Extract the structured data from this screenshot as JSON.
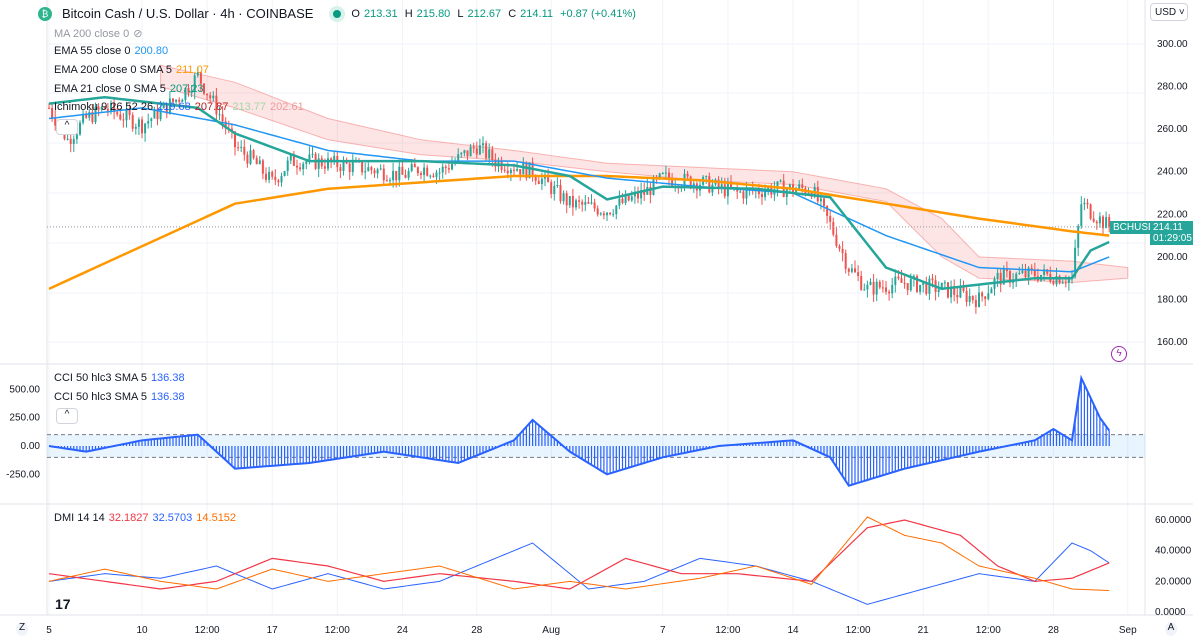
{
  "header": {
    "symbol": "Bitcoin Cash / U.S. Dollar · 4h · COINBASE",
    "open": "213.31",
    "high": "215.80",
    "low": "212.67",
    "close": "214.11",
    "change": "+0.87 (+0.41%)",
    "o": "O",
    "h": "H",
    "l": "L",
    "c": "C"
  },
  "legend": {
    "ma": "MA 200 close 0",
    "ema55": "EMA 55 close 0",
    "ema55_val": "200.80",
    "ema200": "EMA 200 close 0 SMA 5",
    "ema200_val": "211.07",
    "ema21": "EMA 21 close 0 SMA 5",
    "ema21_val": "207.23",
    "ichi": "Ichimoku 9 26 52 26",
    "ichi_vals": [
      "219.68",
      "207.87",
      "213.77",
      "202.61"
    ],
    "cci1": "CCI 50 hlc3 SMA 5",
    "cci1_val": "136.38",
    "cci2": "CCI 50 hlc3 SMA 5",
    "cci2_val": "136.38",
    "dmi": "DMI 14 14",
    "dmi_vals": [
      "32.1827",
      "32.5703",
      "14.5152"
    ]
  },
  "currency": "USD",
  "price_tag": {
    "symbol": "BCHUSD",
    "price": "214.11",
    "countdown": "01:29:05"
  },
  "buttons": {
    "z": "Z",
    "a": "A",
    "collapse": "^"
  },
  "colors": {
    "up": "#26a69a",
    "down": "#ef5350",
    "ema200": "#ff9800",
    "ema55": "#2196f3",
    "ema21": "#26a69a",
    "cci": "#2962ff",
    "plusdi": "#2962ff",
    "minusdi": "#f23645",
    "adx": "#ff6d00"
  },
  "chart_data": {
    "type": "candlestick",
    "price_axis": {
      "range": [
        160,
        300
      ],
      "ticks": [
        "300.00",
        "280.00",
        "260.00",
        "240.00",
        "220.00",
        "200.00",
        "180.00",
        "160.00"
      ]
    },
    "cci_axis": {
      "ticks": [
        "500.00",
        "250.00",
        "0.00",
        "-250.00"
      ]
    },
    "dmi_axis": {
      "ticks": [
        "60.0000",
        "40.0000",
        "20.0000",
        "0.0000"
      ]
    },
    "x_ticks": [
      "5",
      "10",
      "12:00",
      "17",
      "12:00",
      "24",
      "28",
      "Aug",
      "7",
      "12:00",
      "14",
      "12:00",
      "21",
      "12:00",
      "28",
      "Sep"
    ],
    "x_tick_days": [
      0,
      5,
      8.5,
      12,
      15.5,
      19,
      23,
      27,
      33,
      36.5,
      40,
      43.5,
      47,
      50.5,
      54,
      58
    ],
    "price_path": [
      [
        0,
        270
      ],
      [
        1,
        255
      ],
      [
        2,
        265
      ],
      [
        3,
        270
      ],
      [
        5,
        262
      ],
      [
        7,
        275
      ],
      [
        8,
        285
      ],
      [
        9,
        270
      ],
      [
        10,
        252
      ],
      [
        11,
        245
      ],
      [
        12,
        235
      ],
      [
        13,
        245
      ],
      [
        14,
        245
      ],
      [
        16,
        243
      ],
      [
        18,
        240
      ],
      [
        19,
        238
      ],
      [
        20,
        242
      ],
      [
        21,
        240
      ],
      [
        23,
        252
      ],
      [
        24,
        245
      ],
      [
        26,
        240
      ],
      [
        28,
        225
      ],
      [
        30,
        222
      ],
      [
        32,
        230
      ],
      [
        33,
        237
      ],
      [
        35,
        235
      ],
      [
        37,
        230
      ],
      [
        39,
        232
      ],
      [
        41,
        232
      ],
      [
        42,
        215
      ],
      [
        43,
        195
      ],
      [
        44,
        185
      ],
      [
        46,
        188
      ],
      [
        48,
        185
      ],
      [
        50,
        180
      ],
      [
        51,
        190
      ],
      [
        53,
        192
      ],
      [
        55,
        190
      ],
      [
        55.5,
        225
      ],
      [
        57,
        214
      ]
    ],
    "ema200": [
      [
        0,
        185
      ],
      [
        5,
        205
      ],
      [
        10,
        225
      ],
      [
        15,
        232
      ],
      [
        20,
        235
      ],
      [
        25,
        238
      ],
      [
        30,
        238
      ],
      [
        35,
        236
      ],
      [
        40,
        232
      ],
      [
        45,
        225
      ],
      [
        50,
        218
      ],
      [
        55,
        212
      ],
      [
        57,
        210
      ]
    ],
    "ema55": [
      [
        0,
        265
      ],
      [
        5,
        270
      ],
      [
        10,
        262
      ],
      [
        15,
        250
      ],
      [
        20,
        245
      ],
      [
        25,
        245
      ],
      [
        30,
        237
      ],
      [
        35,
        233
      ],
      [
        40,
        230
      ],
      [
        45,
        210
      ],
      [
        50,
        195
      ],
      [
        55,
        193
      ],
      [
        57,
        200
      ]
    ],
    "ema21": [
      [
        0,
        272
      ],
      [
        3,
        275
      ],
      [
        8,
        270
      ],
      [
        10,
        258
      ],
      [
        14,
        245
      ],
      [
        20,
        245
      ],
      [
        25,
        243
      ],
      [
        28,
        238
      ],
      [
        30,
        227
      ],
      [
        33,
        233
      ],
      [
        38,
        232
      ],
      [
        42,
        228
      ],
      [
        45,
        195
      ],
      [
        48,
        185
      ],
      [
        53,
        190
      ],
      [
        55,
        190
      ],
      [
        56,
        203
      ],
      [
        57,
        207
      ]
    ],
    "cloud_top": [
      [
        6,
        290
      ],
      [
        10,
        282
      ],
      [
        15,
        265
      ],
      [
        20,
        255
      ],
      [
        25,
        250
      ],
      [
        30,
        244
      ],
      [
        35,
        242
      ],
      [
        40,
        240
      ],
      [
        45,
        232
      ],
      [
        48,
        218
      ],
      [
        50,
        200
      ],
      [
        55,
        198
      ],
      [
        58,
        195
      ]
    ],
    "cloud_bot": [
      [
        6,
        280
      ],
      [
        10,
        270
      ],
      [
        15,
        255
      ],
      [
        20,
        248
      ],
      [
        25,
        245
      ],
      [
        30,
        240
      ],
      [
        35,
        236
      ],
      [
        40,
        234
      ],
      [
        45,
        226
      ],
      [
        48,
        200
      ],
      [
        50,
        190
      ],
      [
        55,
        188
      ],
      [
        58,
        190
      ]
    ],
    "cci": [
      [
        0,
        0
      ],
      [
        2,
        -50
      ],
      [
        5,
        50
      ],
      [
        8,
        100
      ],
      [
        10,
        -200
      ],
      [
        14,
        -150
      ],
      [
        18,
        -50
      ],
      [
        22,
        -150
      ],
      [
        25,
        50
      ],
      [
        26,
        230
      ],
      [
        28,
        -50
      ],
      [
        30,
        -250
      ],
      [
        33,
        -100
      ],
      [
        36,
        0
      ],
      [
        40,
        50
      ],
      [
        42,
        -100
      ],
      [
        43,
        -350
      ],
      [
        44,
        -300
      ],
      [
        46,
        -200
      ],
      [
        50,
        -50
      ],
      [
        53,
        50
      ],
      [
        54,
        150
      ],
      [
        55,
        50
      ],
      [
        55.5,
        600
      ],
      [
        56.5,
        250
      ],
      [
        57,
        136
      ]
    ],
    "plus_di": [
      [
        0,
        20
      ],
      [
        3,
        25
      ],
      [
        6,
        22
      ],
      [
        9,
        30
      ],
      [
        12,
        15
      ],
      [
        15,
        25
      ],
      [
        18,
        15
      ],
      [
        21,
        20
      ],
      [
        25,
        40
      ],
      [
        26,
        45
      ],
      [
        29,
        15
      ],
      [
        32,
        20
      ],
      [
        35,
        35
      ],
      [
        38,
        30
      ],
      [
        41,
        20
      ],
      [
        44,
        5
      ],
      [
        47,
        15
      ],
      [
        50,
        25
      ],
      [
        53,
        20
      ],
      [
        55,
        45
      ],
      [
        56,
        40
      ],
      [
        57,
        32
      ]
    ],
    "minus_di": [
      [
        0,
        25
      ],
      [
        3,
        20
      ],
      [
        6,
        15
      ],
      [
        9,
        20
      ],
      [
        12,
        35
      ],
      [
        15,
        30
      ],
      [
        18,
        20
      ],
      [
        21,
        25
      ],
      [
        25,
        20
      ],
      [
        28,
        15
      ],
      [
        31,
        35
      ],
      [
        34,
        25
      ],
      [
        37,
        25
      ],
      [
        41,
        20
      ],
      [
        44,
        55
      ],
      [
        46,
        60
      ],
      [
        49,
        50
      ],
      [
        51,
        30
      ],
      [
        53,
        20
      ],
      [
        55,
        22
      ],
      [
        57,
        32
      ]
    ],
    "adx": [
      [
        0,
        20
      ],
      [
        3,
        28
      ],
      [
        6,
        20
      ],
      [
        9,
        15
      ],
      [
        12,
        28
      ],
      [
        15,
        20
      ],
      [
        18,
        25
      ],
      [
        21,
        30
      ],
      [
        25,
        15
      ],
      [
        28,
        20
      ],
      [
        31,
        15
      ],
      [
        35,
        22
      ],
      [
        38,
        30
      ],
      [
        41,
        18
      ],
      [
        44,
        62
      ],
      [
        46,
        50
      ],
      [
        48,
        45
      ],
      [
        50,
        30
      ],
      [
        53,
        22
      ],
      [
        55,
        15
      ],
      [
        57,
        14
      ]
    ]
  }
}
